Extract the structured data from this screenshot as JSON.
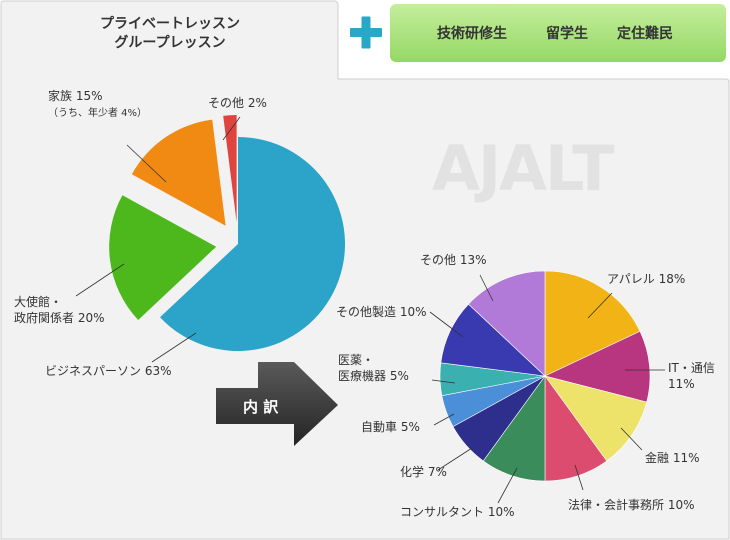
{
  "header": {
    "tab_title_lines": [
      "プライベートレッスン",
      "グループレッスン"
    ],
    "plus_symbol": "+",
    "badge_items": [
      "技術研修生",
      "留学生",
      "定住難民"
    ]
  },
  "logo": {
    "text": "AJALT"
  },
  "arrow": {
    "label": "内 訳"
  },
  "colors": {
    "plus": "#2aa6c6",
    "badge_bg": "#a8e27a",
    "panel_border": "#cfcfcf",
    "panel_bg": "#f2f2f2",
    "arrow_bg": "#3a3a3a"
  },
  "chart_data": [
    {
      "type": "pie",
      "name": "clients",
      "slices": [
        {
          "key": "business",
          "label_lines": [
            "ビジネスパーソン 63%"
          ],
          "value": 63,
          "color": "#2ca3c8",
          "exploded": false
        },
        {
          "key": "embassy",
          "label_lines": [
            "大使館・",
            "政府関係者 20%"
          ],
          "value": 20,
          "color": "#4cb81c",
          "exploded": true
        },
        {
          "key": "family",
          "label_lines": [
            "家族 15%",
            "（うち、年少者 4%）"
          ],
          "value": 15,
          "color": "#f08a12",
          "exploded": true
        },
        {
          "key": "other",
          "label_lines": [
            "その他 2%"
          ],
          "value": 2,
          "color": "#e0443f",
          "exploded": true
        }
      ]
    },
    {
      "type": "pie",
      "name": "business_breakdown",
      "slices": [
        {
          "key": "apparel",
          "label_lines": [
            "アパレル 18%"
          ],
          "value": 18,
          "color": "#f2b316"
        },
        {
          "key": "it",
          "label_lines": [
            "IT・通信",
            "11%"
          ],
          "value": 11,
          "color": "#b8357f"
        },
        {
          "key": "finance",
          "label_lines": [
            "金融 11%"
          ],
          "value": 11,
          "color": "#ede36a"
        },
        {
          "key": "legal",
          "label_lines": [
            "法律・会計事務所 10%"
          ],
          "value": 10,
          "color": "#dc4c6e"
        },
        {
          "key": "consulting",
          "label_lines": [
            "コンサルタント 10%"
          ],
          "value": 10,
          "color": "#3a8c5b"
        },
        {
          "key": "chemical",
          "label_lines": [
            "化学 7%"
          ],
          "value": 7,
          "color": "#2e2e8c"
        },
        {
          "key": "auto",
          "label_lines": [
            "自動車 5%"
          ],
          "value": 5,
          "color": "#4a8fd8"
        },
        {
          "key": "medical",
          "label_lines": [
            "医薬・",
            "医療機器 5%"
          ],
          "value": 5,
          "color": "#3bb0b0"
        },
        {
          "key": "other_mfg",
          "label_lines": [
            "その他製造 10%"
          ],
          "value": 10,
          "color": "#3a3ab0"
        },
        {
          "key": "other",
          "label_lines": [
            "その他 13%"
          ],
          "value": 13,
          "color": "#b27ad8"
        }
      ]
    }
  ]
}
